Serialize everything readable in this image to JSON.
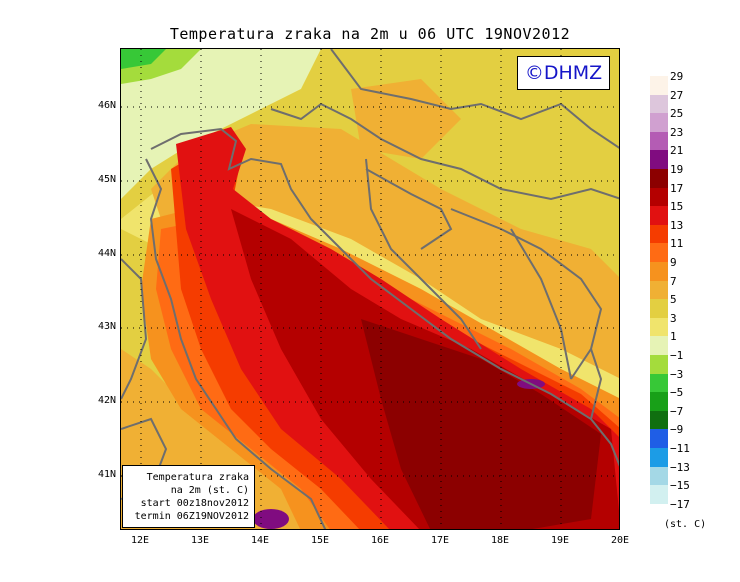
{
  "title": "Temperatura zraka na 2m u 06 UTC 19NOV2012",
  "watermark": "©DHMZ",
  "info_box": {
    "line1": "Temperatura zraka",
    "line2": "na 2m (st. C)",
    "line3": "start 00z18nov2012",
    "line4": "termin 06Z19NOV2012"
  },
  "axes": {
    "lat_labels": [
      "46N",
      "45N",
      "44N",
      "43N",
      "42N",
      "41N"
    ],
    "lon_labels": [
      "12E",
      "13E",
      "14E",
      "15E",
      "16E",
      "17E",
      "18E",
      "19E",
      "20E"
    ],
    "lon_range": [
      11.8,
      20.0
    ],
    "lat_range": [
      40.3,
      46.8
    ],
    "grid": "dotted"
  },
  "legend": {
    "unit": "(st. C)",
    "items": [
      {
        "label": "29",
        "color": "#fdf3e8"
      },
      {
        "label": "27",
        "color": "#ddc6dc"
      },
      {
        "label": "25",
        "color": "#d0a0d0"
      },
      {
        "label": "23",
        "color": "#b45cb4"
      },
      {
        "label": "21",
        "color": "#800c80"
      },
      {
        "label": "19",
        "color": "#8c0000"
      },
      {
        "label": "17",
        "color": "#b40000"
      },
      {
        "label": "15",
        "color": "#e11111"
      },
      {
        "label": "13",
        "color": "#f53c00"
      },
      {
        "label": "11",
        "color": "#ff6b14"
      },
      {
        "label": "9",
        "color": "#f6921e"
      },
      {
        "label": "7",
        "color": "#f0b034"
      },
      {
        "label": "5",
        "color": "#e3cf41"
      },
      {
        "label": "3",
        "color": "#f0e46c"
      },
      {
        "label": "1",
        "color": "#e6f3b5"
      },
      {
        "label": "−1",
        "color": "#a4dc3c"
      },
      {
        "label": "−3",
        "color": "#37c837"
      },
      {
        "label": "−5",
        "color": "#18a018"
      },
      {
        "label": "−7",
        "color": "#106f10"
      },
      {
        "label": "−9",
        "color": "#1f5ee6"
      },
      {
        "label": "−11",
        "color": "#1c9ce6"
      },
      {
        "label": "−13",
        "color": "#a4d8e6"
      },
      {
        "label": "−15",
        "color": "#d2f0f0"
      },
      {
        "label": "−17",
        "color": "#ffffff"
      }
    ]
  }
}
